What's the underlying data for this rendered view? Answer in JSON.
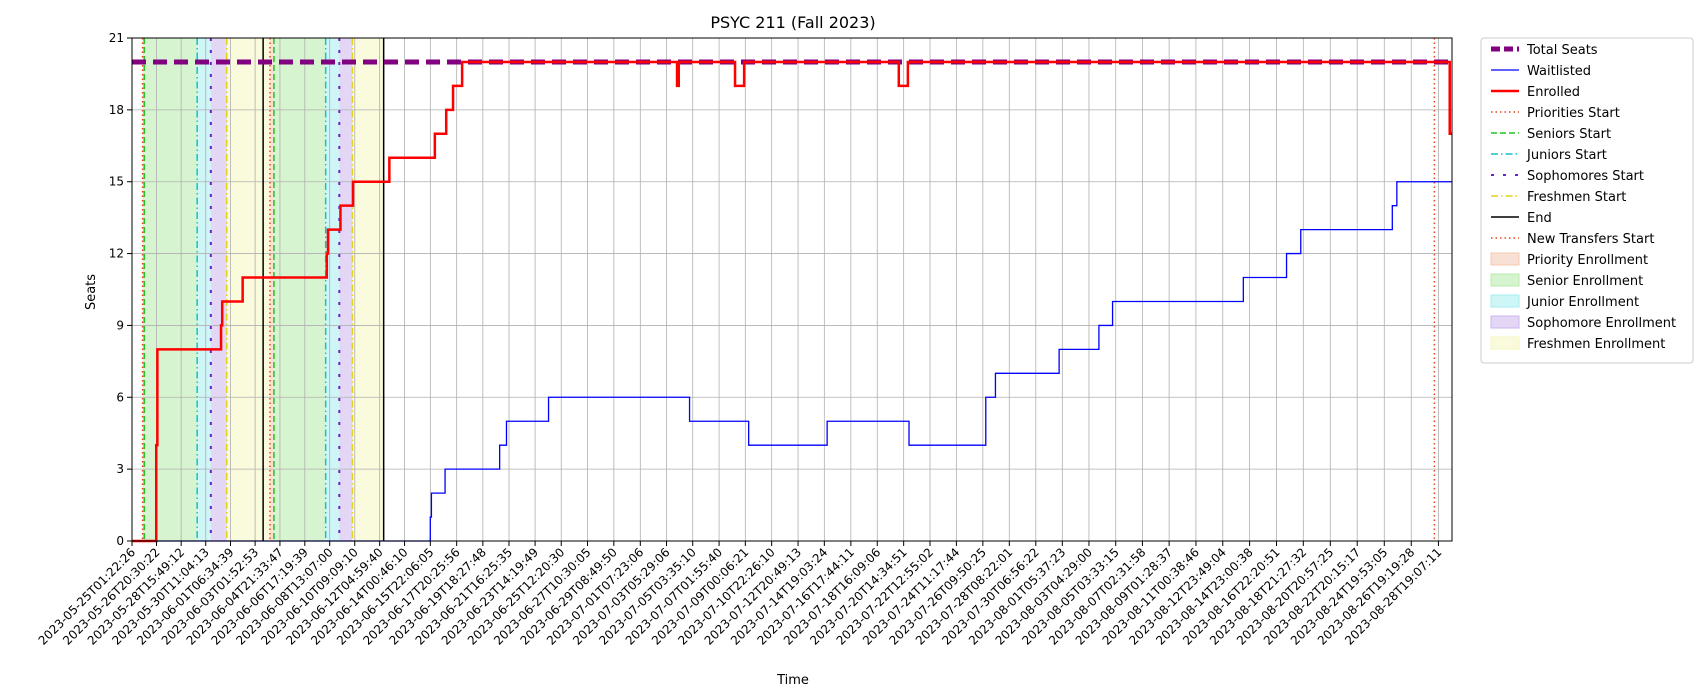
{
  "chart_data": {
    "type": "line",
    "title": "PSYC 211 (Fall 2023)",
    "xlabel": "Time",
    "ylabel": "Seats",
    "ylim": [
      0,
      21
    ],
    "yticks": [
      0,
      3,
      6,
      9,
      12,
      15,
      18,
      21
    ],
    "xlim": [
      "2023-05-25T01:22:26",
      "2023-08-29T19:00:00"
    ],
    "grid": true,
    "legend_position": "outside-right",
    "xtick_labels": [
      "2023-05-25T01:22:26",
      "2023-05-26T20:30:22",
      "2023-05-28T15:49:12",
      "2023-05-30T11:04:13",
      "2023-06-01T06:34:39",
      "2023-06-03T01:52:53",
      "2023-06-04T21:33:47",
      "2023-06-06T17:19:39",
      "2023-06-08T13:07:00",
      "2023-06-10T09:09:10",
      "2023-06-12T04:59:40",
      "2023-06-14T00:46:10",
      "2023-06-15T22:06:05",
      "2023-06-17T20:25:56",
      "2023-06-19T18:27:48",
      "2023-06-21T16:25:35",
      "2023-06-23T14:19:49",
      "2023-06-25T12:20:30",
      "2023-06-27T10:30:05",
      "2023-06-29T08:49:50",
      "2023-07-01T07:23:06",
      "2023-07-03T05:29:06",
      "2023-07-05T03:35:10",
      "2023-07-07T01:55:40",
      "2023-07-09T00:06:21",
      "2023-07-10T22:26:10",
      "2023-07-12T20:49:13",
      "2023-07-14T19:03:24",
      "2023-07-16T17:44:11",
      "2023-07-18T16:09:06",
      "2023-07-20T14:34:51",
      "2023-07-22T12:55:02",
      "2023-07-24T11:17:44",
      "2023-07-26T09:50:25",
      "2023-07-28T08:22:01",
      "2023-07-30T06:56:22",
      "2023-08-01T05:37:23",
      "2023-08-03T04:29:00",
      "2023-08-05T03:33:15",
      "2023-08-07T02:31:58",
      "2023-08-09T01:28:37",
      "2023-08-11T00:38:46",
      "2023-08-12T23:49:04",
      "2023-08-14T23:00:38",
      "2023-08-16T22:20:51",
      "2023-08-18T21:27:32",
      "2023-08-20T20:57:25",
      "2023-08-22T20:15:17",
      "2023-08-24T19:53:05",
      "2023-08-26T19:19:28",
      "2023-08-28T19:07:11"
    ],
    "phases": [
      {
        "name": "Priority Enrollment",
        "start": "2023-05-25T20:00:00",
        "end": "2023-05-25T23:00:00",
        "color": "#f4c7b0"
      },
      {
        "name": "Senior Enrollment",
        "start": "2023-05-25T23:00:00",
        "end": "2023-05-29T20:00:00",
        "color": "#b7ebaa"
      },
      {
        "name": "Junior Enrollment",
        "start": "2023-05-29T20:00:00",
        "end": "2023-05-30T20:00:00",
        "color": "#a6eef0"
      },
      {
        "name": "Sophomore Enrollment",
        "start": "2023-05-30T20:00:00",
        "end": "2023-06-01T00:00:00",
        "color": "#cdb6ee"
      },
      {
        "name": "Freshmen Enrollment",
        "start": "2023-06-01T00:00:00",
        "end": "2023-06-04T04:00:00",
        "color": "#f6f6bf"
      },
      {
        "name": "Priority Enrollment",
        "start": "2023-06-04T04:00:00",
        "end": "2023-06-04T11:00:00",
        "color": "#f4c7b0"
      },
      {
        "name": "Senior Enrollment",
        "start": "2023-06-04T11:00:00",
        "end": "2023-06-08T06:00:00",
        "color": "#b7ebaa"
      },
      {
        "name": "Junior Enrollment",
        "start": "2023-06-08T06:00:00",
        "end": "2023-06-09T06:00:00",
        "color": "#a6eef0"
      },
      {
        "name": "Sophomore Enrollment",
        "start": "2023-06-09T06:00:00",
        "end": "2023-06-10T05:00:00",
        "color": "#cdb6ee"
      },
      {
        "name": "Freshmen Enrollment",
        "start": "2023-06-10T05:00:00",
        "end": "2023-06-12T12:00:00",
        "color": "#f6f6bf"
      }
    ],
    "markers": [
      {
        "name": "Priorities Start",
        "time": "2023-05-25T20:00:00",
        "color": "#e8431a",
        "style": "dotted"
      },
      {
        "name": "Seniors Start",
        "time": "2023-05-25T23:00:00",
        "color": "#22c322",
        "style": "dashed"
      },
      {
        "name": "Juniors Start",
        "time": "2023-05-29T20:00:00",
        "color": "#12c2cc",
        "style": "dashdot"
      },
      {
        "name": "Sophomores Start",
        "time": "2023-05-30T20:00:00",
        "color": "#6a1fd0",
        "style": "loose"
      },
      {
        "name": "Freshmen Start",
        "time": "2023-06-01T00:00:00",
        "color": "#e3d21a",
        "style": "dashdot"
      },
      {
        "name": "End",
        "time": "2023-06-03T16:00:00",
        "color": "#000000",
        "style": "solid"
      },
      {
        "name": "Priorities Start",
        "time": "2023-06-04T04:00:00",
        "color": "#e8431a",
        "style": "dotted"
      },
      {
        "name": "Seniors Start",
        "time": "2023-06-04T11:00:00",
        "color": "#22c322",
        "style": "dashed"
      },
      {
        "name": "Juniors Start",
        "time": "2023-06-08T06:00:00",
        "color": "#12c2cc",
        "style": "dashdot"
      },
      {
        "name": "Sophomores Start",
        "time": "2023-06-09T06:00:00",
        "color": "#6a1fd0",
        "style": "loose"
      },
      {
        "name": "Freshmen Start",
        "time": "2023-06-10T05:00:00",
        "color": "#e3d21a",
        "style": "dashdot"
      },
      {
        "name": "End",
        "time": "2023-06-12T12:00:00",
        "color": "#000000",
        "style": "solid"
      },
      {
        "name": "New Transfers Start",
        "time": "2023-08-28T12:00:00",
        "color": "#e8431a",
        "style": "dotted"
      }
    ],
    "series": [
      {
        "name": "Total Seats",
        "color": "#800080",
        "style": "dashed-thick",
        "points": [
          [
            "2023-05-25T01:22:26",
            20
          ],
          [
            "2023-08-29T19:00:00",
            20
          ]
        ]
      },
      {
        "name": "Waitlisted",
        "color": "#0000ff",
        "style": "step",
        "points": [
          [
            "2023-05-25T01:22:26",
            0
          ],
          [
            "2023-06-15T22:00:00",
            1
          ],
          [
            "2023-06-16T00:00:00",
            2
          ],
          [
            "2023-06-17T00:00:00",
            3
          ],
          [
            "2023-06-21T00:00:00",
            4
          ],
          [
            "2023-06-21T12:00:00",
            5
          ],
          [
            "2023-06-24T14:00:00",
            6
          ],
          [
            "2023-07-04T22:00:00",
            5
          ],
          [
            "2023-07-09T06:00:00",
            4
          ],
          [
            "2023-07-15T00:00:00",
            5
          ],
          [
            "2023-07-21T00:00:00",
            4
          ],
          [
            "2023-07-26T15:00:00",
            6
          ],
          [
            "2023-07-27T08:00:00",
            7
          ],
          [
            "2023-08-01T00:00:00",
            8
          ],
          [
            "2023-08-03T22:00:00",
            9
          ],
          [
            "2023-08-04T22:00:00",
            10
          ],
          [
            "2023-08-14T12:00:00",
            11
          ],
          [
            "2023-08-17T16:00:00",
            12
          ],
          [
            "2023-08-18T17:00:00",
            13
          ],
          [
            "2023-08-25T10:00:00",
            14
          ],
          [
            "2023-08-25T18:00:00",
            15
          ],
          [
            "2023-08-29T19:00:00",
            15
          ]
        ]
      },
      {
        "name": "Enrolled",
        "color": "#ff0000",
        "style": "step-thick",
        "points": [
          [
            "2023-05-25T01:22:26",
            0
          ],
          [
            "2023-05-26T20:00:00",
            4
          ],
          [
            "2023-05-26T22:00:00",
            8
          ],
          [
            "2023-05-31T14:00:00",
            9
          ],
          [
            "2023-05-31T16:00:00",
            10
          ],
          [
            "2023-06-02T04:00:00",
            11
          ],
          [
            "2023-06-08T08:00:00",
            12
          ],
          [
            "2023-06-08T10:00:00",
            13
          ],
          [
            "2023-06-09T08:00:00",
            14
          ],
          [
            "2023-06-10T06:00:00",
            15
          ],
          [
            "2023-06-12T22:00:00",
            16
          ],
          [
            "2023-06-16T06:00:00",
            17
          ],
          [
            "2023-06-17T02:00:00",
            18
          ],
          [
            "2023-06-17T14:00:00",
            19
          ],
          [
            "2023-06-18T06:00:00",
            20
          ],
          [
            "2023-07-04T00:00:00",
            19
          ],
          [
            "2023-07-04T03:00:00",
            20
          ],
          [
            "2023-07-08T06:00:00",
            19
          ],
          [
            "2023-07-08T22:00:00",
            20
          ],
          [
            "2023-07-20T06:00:00",
            19
          ],
          [
            "2023-07-20T22:00:00",
            20
          ],
          [
            "2023-08-29T15:00:00",
            17
          ],
          [
            "2023-08-29T19:00:00",
            17
          ]
        ]
      }
    ]
  },
  "legend": [
    {
      "label": "Total Seats",
      "kind": "line",
      "color": "#800080",
      "dash": "9,4",
      "width": 5
    },
    {
      "label": "Waitlisted",
      "kind": "line",
      "color": "#0000ff",
      "dash": "",
      "width": 1.3
    },
    {
      "label": "Enrolled",
      "kind": "line",
      "color": "#ff0000",
      "dash": "",
      "width": 2.5
    },
    {
      "label": "Priorities Start",
      "kind": "line",
      "color": "#e8431a",
      "dash": "1.5,3",
      "width": 1.5
    },
    {
      "label": "Seniors Start",
      "kind": "line",
      "color": "#22c322",
      "dash": "6,3",
      "width": 1.5
    },
    {
      "label": "Juniors Start",
      "kind": "line",
      "color": "#12c2cc",
      "dash": "7,3,1.5,3",
      "width": 1.5
    },
    {
      "label": "Sophomores Start",
      "kind": "line",
      "color": "#6a1fd0",
      "dash": "3,9",
      "width": 2
    },
    {
      "label": "Freshmen Start",
      "kind": "line",
      "color": "#e3d21a",
      "dash": "7,3,1.5,3",
      "width": 1.5
    },
    {
      "label": "End",
      "kind": "line",
      "color": "#000000",
      "dash": "",
      "width": 1.5
    },
    {
      "label": "New Transfers Start",
      "kind": "line",
      "color": "#e8431a",
      "dash": "1.5,3",
      "width": 1.5
    },
    {
      "label": "Priority Enrollment",
      "kind": "patch",
      "color": "#f4c7b0"
    },
    {
      "label": "Senior Enrollment",
      "kind": "patch",
      "color": "#b7ebaa"
    },
    {
      "label": "Junior Enrollment",
      "kind": "patch",
      "color": "#a6eef0"
    },
    {
      "label": "Sophomore Enrollment",
      "kind": "patch",
      "color": "#cdb6ee"
    },
    {
      "label": "Freshmen Enrollment",
      "kind": "patch",
      "color": "#f6f6bf"
    }
  ]
}
